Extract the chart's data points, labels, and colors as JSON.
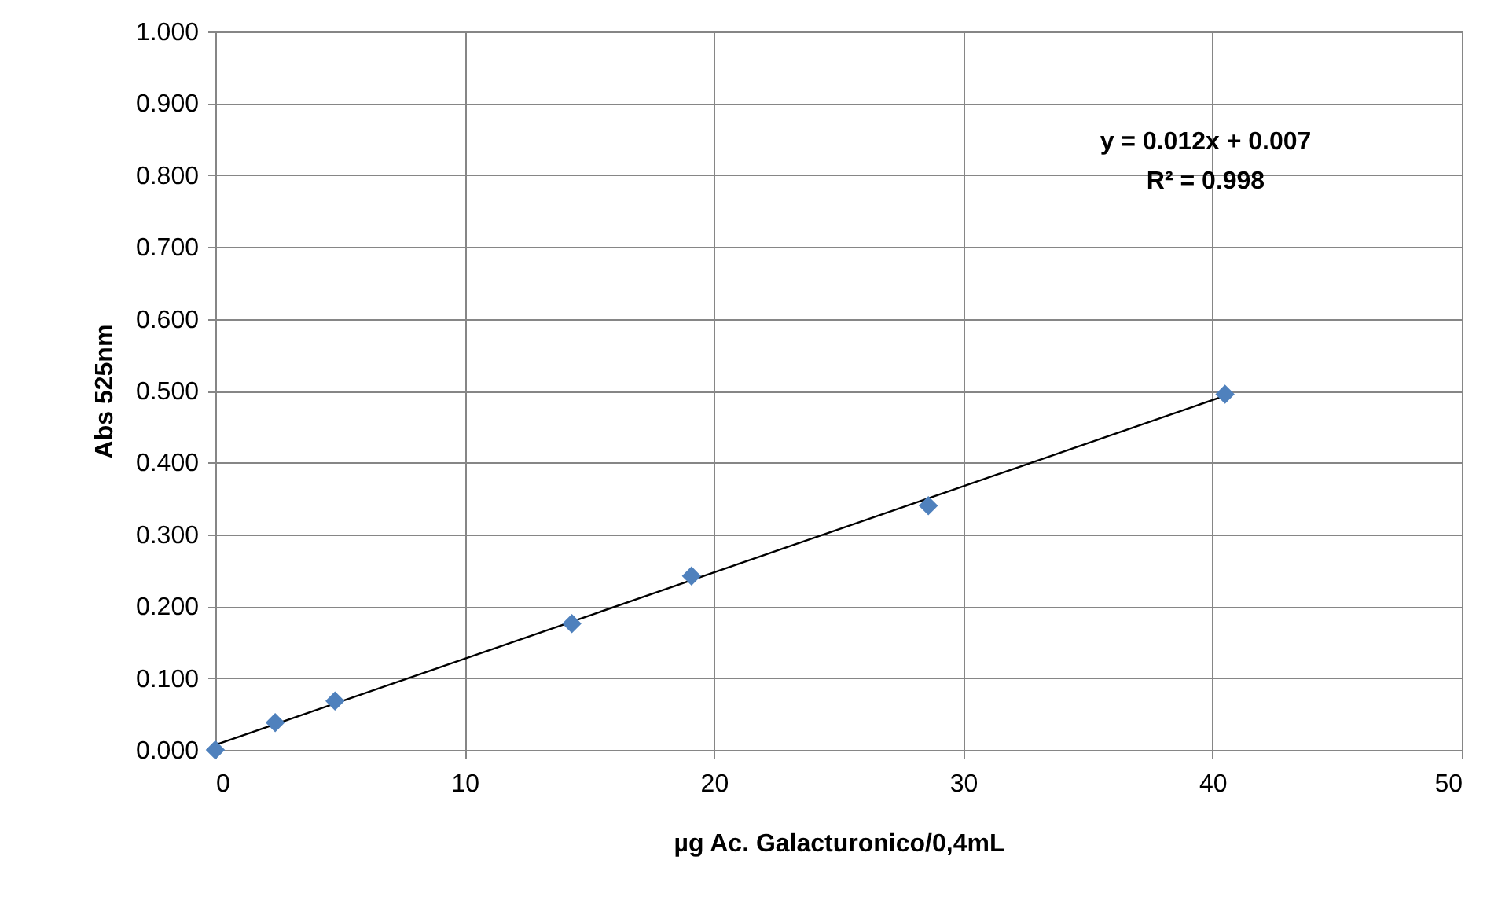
{
  "chart_data": {
    "type": "scatter",
    "xlabel": "µg Ac. Galacturonico/0,4mL",
    "ylabel": "Abs 525nm",
    "series": [
      {
        "type": "scatter",
        "color": "#4f81bd",
        "marker": "diamond",
        "x": [
          0,
          2.4,
          4.8,
          14.3,
          19.1,
          28.6,
          40.5
        ],
        "values": [
          0.0,
          0.038,
          0.068,
          0.176,
          0.242,
          0.34,
          0.495
        ]
      },
      {
        "type": "line",
        "color": "#000000",
        "marker": "none",
        "line_style": "solid",
        "x": [
          0,
          40.5
        ],
        "values": [
          0.007,
          0.493
        ]
      }
    ],
    "xlim": [
      0,
      50
    ],
    "xticks": [
      0,
      10,
      20,
      30,
      40,
      50
    ],
    "ylim": [
      0,
      1
    ],
    "yticks": [
      {
        "value": 0,
        "label": "0.000"
      },
      {
        "value": 0.1,
        "label": "0.100"
      },
      {
        "value": 0.2,
        "label": "0.200"
      },
      {
        "value": 0.3,
        "label": "0.300"
      },
      {
        "value": 0.4,
        "label": "0.400"
      },
      {
        "value": 0.5,
        "label": "0.500"
      },
      {
        "value": 0.6,
        "label": "0.600"
      },
      {
        "value": 0.7,
        "label": "0.700"
      },
      {
        "value": 0.8,
        "label": "0.800"
      },
      {
        "value": 0.9,
        "label": "0.900"
      },
      {
        "value": 1,
        "label": "1.000"
      }
    ],
    "grid": true,
    "annotations": [
      "y = 0.012x + 0.007",
      "R² = 0.998"
    ]
  }
}
